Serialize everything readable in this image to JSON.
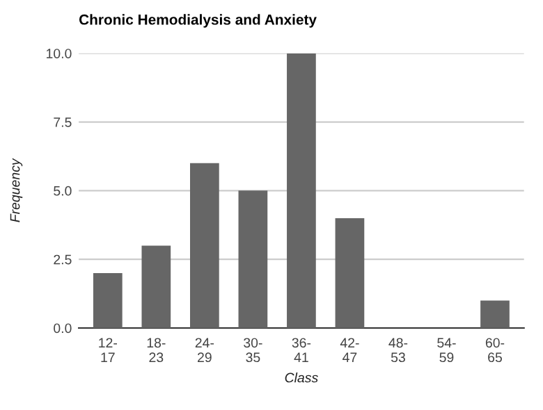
{
  "chart_data": {
    "type": "bar",
    "title": "Chronic Hemodialysis and Anxiety",
    "xlabel": "Class",
    "ylabel": "Frequency",
    "categories": [
      "12-\n17",
      "18-\n23",
      "24-\n29",
      "30-\n35",
      "36-\n41",
      "42-\n47",
      "48-\n53",
      "54-\n59",
      "60-\n65"
    ],
    "values": [
      2,
      3,
      6,
      5,
      10,
      4,
      0,
      0,
      1
    ],
    "color": "#666666",
    "ylim": [
      0,
      10
    ],
    "yticks": [
      {
        "value": 0,
        "label": "0.0"
      },
      {
        "value": 2.5,
        "label": "2.5"
      },
      {
        "value": 5,
        "label": "5.0"
      },
      {
        "value": 7.5,
        "label": "7.5"
      },
      {
        "value": 10,
        "label": "10.0"
      }
    ],
    "grid": "y",
    "legend": false
  }
}
